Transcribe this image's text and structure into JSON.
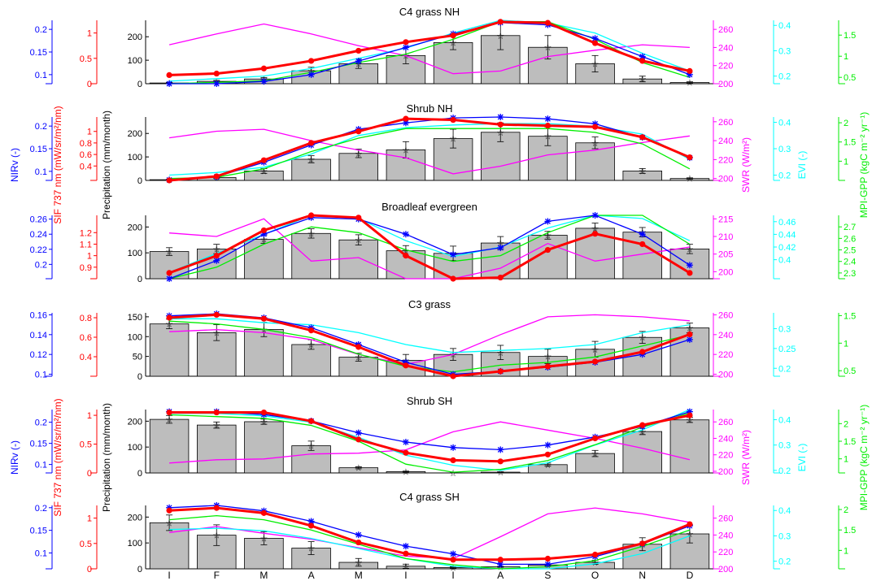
{
  "months": [
    "I",
    "F",
    "M",
    "A",
    "M",
    "I",
    "I",
    "A",
    "S",
    "O",
    "N",
    "D"
  ],
  "series_colors": {
    "NIRv": "#0000ff",
    "SIF": "#ff0000",
    "precip": "#bdbdbd",
    "SWR": "#ff00ff",
    "EVI": "#00ffff",
    "GPP": "#00ee00"
  },
  "shared_labels": {
    "nirv": "NIRv (-)",
    "sif": "SIF 737 nm (mW/sr/m²/nm)",
    "precip": "Precipitation (mm/month)",
    "swr": "SWR (W/m²)",
    "evi": "EVI (-)",
    "gpp": "MPI-GPP (kgC m⁻² yr⁻¹)"
  },
  "chart_data": [
    {
      "type": "bar",
      "title": "C4 grass NH",
      "categories": [
        "I",
        "F",
        "M",
        "A",
        "M",
        "I",
        "I",
        "A",
        "S",
        "O",
        "N",
        "D"
      ],
      "ylim": {
        "precip": [
          0,
          270
        ],
        "nirv": [
          0.08,
          0.22
        ],
        "sif": [
          0,
          1.25
        ],
        "swr": [
          200,
          270
        ],
        "evi": [
          0.17,
          0.42
        ],
        "gpp": [
          0.35,
          1.85
        ]
      },
      "ticks": {
        "precip": [
          0,
          100,
          200
        ],
        "nirv": [
          0.1,
          0.15,
          0.2
        ],
        "sif": [
          0,
          0.5,
          1
        ],
        "swr": [
          200,
          220,
          240,
          260
        ],
        "evi": [
          0.2,
          0.3,
          0.4
        ],
        "gpp": [
          0.5,
          1,
          1.5
        ]
      },
      "show_axis_labels": false,
      "precip": [
        3,
        10,
        20,
        55,
        85,
        120,
        175,
        205,
        155,
        85,
        20,
        5
      ],
      "precip_err": [
        2,
        4,
        6,
        15,
        20,
        35,
        30,
        60,
        50,
        35,
        12,
        3
      ],
      "series": [
        {
          "name": "NIRv",
          "values": [
            0.08,
            0.08,
            0.085,
            0.1,
            0.13,
            0.16,
            0.19,
            0.215,
            0.21,
            0.18,
            0.14,
            0.1
          ]
        },
        {
          "name": "SIF",
          "values": [
            0.17,
            0.2,
            0.3,
            0.45,
            0.65,
            0.82,
            0.95,
            1.22,
            1.2,
            0.8,
            0.45,
            0.25
          ]
        },
        {
          "name": "SWR",
          "values": [
            243,
            255,
            266,
            255,
            242,
            231,
            211,
            214,
            230,
            237,
            243,
            240
          ]
        },
        {
          "name": "EVI",
          "values": [
            0.18,
            0.19,
            0.2,
            0.23,
            0.27,
            0.31,
            0.37,
            0.42,
            0.41,
            0.37,
            0.29,
            0.22
          ]
        },
        {
          "name": "GPP",
          "values": [
            0.35,
            0.38,
            0.42,
            0.62,
            0.85,
            1.05,
            1.4,
            1.82,
            1.82,
            1.4,
            0.85,
            0.5
          ]
        }
      ]
    },
    {
      "type": "bar",
      "title": "Shrub NH",
      "categories": [
        "I",
        "F",
        "M",
        "A",
        "M",
        "I",
        "I",
        "A",
        "S",
        "O",
        "N",
        "D"
      ],
      "ylim": {
        "precip": [
          0,
          270
        ],
        "nirv": [
          0.08,
          0.22
        ],
        "sif": [
          0.15,
          1.25
        ],
        "swr": [
          198,
          265
        ],
        "evi": [
          0.18,
          0.42
        ],
        "gpp": [
          0.5,
          2.15
        ]
      },
      "ticks": {
        "precip": [
          0,
          100,
          200
        ],
        "nirv": [
          0.1,
          0.15,
          0.2
        ],
        "sif": [
          0.4,
          0.6,
          0.8,
          1
        ],
        "swr": [
          200,
          220,
          240,
          260
        ],
        "evi": [
          0.2,
          0.3,
          0.4
        ],
        "gpp": [
          1,
          1.5,
          2
        ]
      },
      "show_axis_labels": true,
      "precip": [
        3,
        12,
        40,
        90,
        115,
        130,
        178,
        205,
        188,
        160,
        40,
        8
      ],
      "precip_err": [
        2,
        4,
        10,
        15,
        18,
        35,
        40,
        40,
        40,
        25,
        10,
        3
      ],
      "series": [
        {
          "name": "NIRv",
          "values": [
            0.081,
            0.088,
            0.12,
            0.158,
            0.193,
            0.207,
            0.218,
            0.22,
            0.216,
            0.205,
            0.175,
            0.13
          ]
        },
        {
          "name": "SIF",
          "values": [
            0.15,
            0.22,
            0.5,
            0.8,
            1.0,
            1.22,
            1.2,
            1.12,
            1.1,
            1.08,
            0.9,
            0.55
          ]
        },
        {
          "name": "SWR",
          "values": [
            243,
            250,
            252,
            240,
            230,
            222,
            205,
            213,
            225,
            230,
            238,
            245
          ]
        },
        {
          "name": "EVI",
          "values": [
            0.2,
            0.21,
            0.23,
            0.28,
            0.35,
            0.38,
            0.39,
            0.395,
            0.395,
            0.385,
            0.355,
            0.26
          ]
        },
        {
          "name": "GPP",
          "values": [
            0.55,
            0.58,
            0.8,
            1.25,
            1.6,
            1.85,
            1.85,
            1.85,
            1.85,
            1.75,
            1.45,
            0.8
          ]
        }
      ]
    },
    {
      "type": "bar",
      "title": "Broadleaf evergreen",
      "categories": [
        "I",
        "F",
        "M",
        "A",
        "M",
        "I",
        "I",
        "A",
        "S",
        "O",
        "N",
        "D"
      ],
      "ylim": {
        "precip": [
          0,
          245
        ],
        "nirv": [
          0.181,
          0.265
        ],
        "sif": [
          0.8,
          1.35
        ],
        "swr": [
          198,
          216
        ],
        "evi": [
          0.37,
          0.47
        ],
        "gpp": [
          2.25,
          2.8
        ]
      },
      "ticks": {
        "precip": [
          0,
          100,
          200
        ],
        "nirv": [
          0.2,
          0.22,
          0.24,
          0.26
        ],
        "sif": [
          0.9,
          1,
          1.1,
          1.2
        ],
        "swr": [
          200,
          205,
          210,
          215
        ],
        "evi": [
          0.4,
          0.42,
          0.44,
          0.46
        ],
        "gpp": [
          2.3,
          2.4,
          2.5,
          2.6,
          2.7
        ]
      },
      "show_axis_labels": false,
      "precip": [
        105,
        115,
        152,
        175,
        150,
        108,
        98,
        138,
        168,
        195,
        180,
        115
      ],
      "precip_err": [
        15,
        18,
        15,
        18,
        20,
        20,
        28,
        25,
        15,
        20,
        18,
        18
      ],
      "series": [
        {
          "name": "NIRv",
          "values": [
            0.181,
            0.205,
            0.24,
            0.262,
            0.26,
            0.24,
            0.213,
            0.222,
            0.257,
            0.265,
            0.24,
            0.199
          ]
        },
        {
          "name": "SIF",
          "values": [
            0.85,
            1.0,
            1.22,
            1.35,
            1.33,
            1.0,
            0.8,
            0.81,
            1.05,
            1.19,
            1.1,
            0.85
          ]
        },
        {
          "name": "SWR",
          "values": [
            211,
            210,
            215,
            203,
            204,
            198,
            198,
            201,
            208,
            203,
            205,
            207
          ]
        },
        {
          "name": "EVI",
          "values": [
            0.38,
            0.41,
            0.44,
            0.47,
            0.465,
            0.43,
            0.405,
            0.42,
            0.45,
            0.47,
            0.465,
            0.43
          ]
        },
        {
          "name": "GPP",
          "values": [
            2.25,
            2.35,
            2.55,
            2.7,
            2.65,
            2.5,
            2.4,
            2.45,
            2.65,
            2.8,
            2.8,
            2.55
          ]
        }
      ]
    },
    {
      "type": "bar",
      "title": "C3 grass",
      "categories": [
        "I",
        "F",
        "M",
        "A",
        "M",
        "I",
        "I",
        "A",
        "S",
        "O",
        "N",
        "D"
      ],
      "ylim": {
        "precip": [
          0,
          160
        ],
        "nirv": [
          0.098,
          0.162
        ],
        "sif": [
          0.2,
          0.85
        ],
        "swr": [
          198,
          262
        ],
        "evi": [
          0.18,
          0.34
        ],
        "gpp": [
          0.4,
          1.55
        ]
      },
      "ticks": {
        "precip": [
          0,
          50,
          100,
          150
        ],
        "nirv": [
          0.1,
          0.12,
          0.14,
          0.16
        ],
        "sif": [
          0.4,
          0.6,
          0.8
        ],
        "swr": [
          200,
          220,
          240,
          260
        ],
        "evi": [
          0.2,
          0.25,
          0.3
        ],
        "gpp": [
          0.5,
          1,
          1.5
        ]
      },
      "show_axis_labels": false,
      "precip": [
        132,
        110,
        118,
        80,
        48,
        40,
        55,
        60,
        50,
        68,
        98,
        122
      ],
      "precip_err": [
        12,
        20,
        18,
        12,
        10,
        15,
        15,
        18,
        18,
        20,
        15,
        12
      ],
      "series": [
        {
          "name": "NIRv",
          "values": [
            0.159,
            0.161,
            0.157,
            0.147,
            0.13,
            0.112,
            0.1,
            0.103,
            0.107,
            0.112,
            0.12,
            0.135
          ]
        },
        {
          "name": "SIF",
          "values": [
            0.8,
            0.83,
            0.79,
            0.67,
            0.5,
            0.31,
            0.2,
            0.25,
            0.3,
            0.35,
            0.45,
            0.63
          ]
        },
        {
          "name": "SWR",
          "values": [
            243,
            245,
            242,
            235,
            220,
            210,
            220,
            240,
            258,
            260,
            258,
            254
          ]
        },
        {
          "name": "EVI",
          "values": [
            0.325,
            0.325,
            0.315,
            0.31,
            0.29,
            0.26,
            0.24,
            0.245,
            0.25,
            0.26,
            0.29,
            0.31
          ]
        },
        {
          "name": "GPP",
          "values": [
            1.4,
            1.35,
            1.25,
            1.1,
            0.8,
            0.58,
            0.48,
            0.6,
            0.65,
            0.75,
            0.95,
            1.15
          ]
        }
      ]
    },
    {
      "type": "bar",
      "title": "Shrub SH",
      "categories": [
        "I",
        "F",
        "M",
        "A",
        "M",
        "I",
        "I",
        "A",
        "S",
        "O",
        "N",
        "D"
      ],
      "ylim": {
        "precip": [
          0,
          245
        ],
        "nirv": [
          0.08,
          0.23
        ],
        "sif": [
          0,
          1.1
        ],
        "swr": [
          198,
          275
        ],
        "evi": [
          0.19,
          0.44
        ],
        "gpp": [
          0.6,
          2.4
        ]
      },
      "ticks": {
        "precip": [
          0,
          100,
          200
        ],
        "nirv": [
          0.1,
          0.15,
          0.2
        ],
        "sif": [
          0,
          0.5,
          1
        ],
        "swr": [
          200,
          220,
          240,
          260
        ],
        "evi": [
          0.2,
          0.3,
          0.4
        ],
        "gpp": [
          1,
          1.5,
          2
        ]
      },
      "show_axis_labels": true,
      "precip": [
        207,
        185,
        198,
        105,
        20,
        5,
        0,
        3,
        32,
        75,
        160,
        205
      ],
      "precip_err": [
        15,
        12,
        10,
        18,
        4,
        2,
        0,
        1,
        6,
        12,
        12,
        10
      ],
      "series": [
        {
          "name": "NIRv",
          "values": [
            0.225,
            0.225,
            0.218,
            0.203,
            0.175,
            0.153,
            0.14,
            0.135,
            0.146,
            0.165,
            0.19,
            0.225
          ]
        },
        {
          "name": "SIF",
          "values": [
            1.05,
            1.05,
            1.05,
            0.9,
            0.58,
            0.35,
            0.22,
            0.2,
            0.32,
            0.6,
            0.83,
            1.0
          ]
        },
        {
          "name": "SWR",
          "values": [
            210,
            214,
            215,
            221,
            222,
            226,
            248,
            260,
            250,
            240,
            228,
            214
          ]
        },
        {
          "name": "EVI",
          "values": [
            0.425,
            0.425,
            0.415,
            0.39,
            0.33,
            0.26,
            0.22,
            0.2,
            0.23,
            0.3,
            0.36,
            0.44
          ]
        },
        {
          "name": "GPP",
          "values": [
            2.25,
            2.2,
            2.15,
            1.95,
            1.5,
            0.85,
            0.62,
            0.7,
            0.95,
            1.4,
            1.9,
            2.3
          ]
        }
      ]
    },
    {
      "type": "bar",
      "title": "C4 grass SH",
      "categories": [
        "I",
        "F",
        "M",
        "A",
        "M",
        "I",
        "I",
        "A",
        "S",
        "O",
        "N",
        "D"
      ],
      "ylim": {
        "precip": [
          0,
          245
        ],
        "nirv": [
          0.065,
          0.205
        ],
        "sif": [
          0,
          1.25
        ],
        "swr": [
          200,
          275
        ],
        "evi": [
          0.17,
          0.42
        ],
        "gpp": [
          0.55,
          2.1
        ]
      },
      "ticks": {
        "precip": [
          0,
          100,
          200
        ],
        "nirv": [
          0.1,
          0.15,
          0.2
        ],
        "sif": [
          0,
          0.5,
          1
        ],
        "swr": [
          200,
          220,
          240,
          260
        ],
        "evi": [
          0.2,
          0.3,
          0.4
        ],
        "gpp": [
          1,
          1.5,
          2
        ]
      },
      "show_axis_labels": false,
      "precip": [
        178,
        130,
        118,
        80,
        25,
        10,
        5,
        8,
        15,
        25,
        95,
        135
      ],
      "precip_err": [
        30,
        40,
        25,
        25,
        15,
        8,
        3,
        2,
        3,
        8,
        25,
        35
      ],
      "series": [
        {
          "name": "NIRv",
          "values": [
            0.2,
            0.205,
            0.193,
            0.17,
            0.14,
            0.115,
            0.098,
            0.075,
            0.075,
            0.092,
            0.12,
            0.16
          ]
        },
        {
          "name": "SIF",
          "values": [
            1.15,
            1.2,
            1.1,
            0.85,
            0.52,
            0.3,
            0.18,
            0.18,
            0.2,
            0.28,
            0.5,
            0.88
          ]
        },
        {
          "name": "SWR",
          "values": [
            243,
            250,
            242,
            235,
            225,
            215,
            212,
            238,
            265,
            272,
            265,
            255
          ]
        },
        {
          "name": "EVI",
          "values": [
            0.325,
            0.33,
            0.32,
            0.29,
            0.25,
            0.21,
            0.18,
            0.17,
            0.17,
            0.19,
            0.23,
            0.3
          ]
        },
        {
          "name": "GPP",
          "values": [
            1.75,
            1.85,
            1.75,
            1.5,
            1.15,
            0.8,
            0.65,
            0.55,
            0.6,
            0.75,
            1.1,
            1.5
          ]
        }
      ]
    }
  ]
}
